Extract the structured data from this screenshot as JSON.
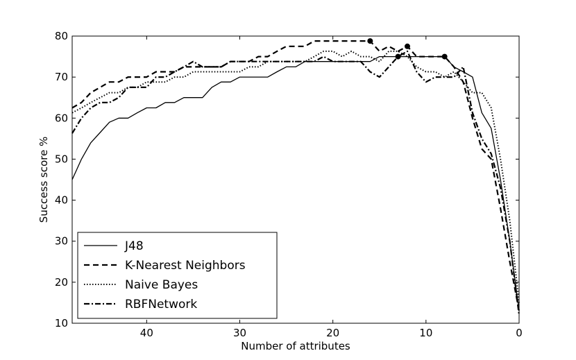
{
  "chart_data": {
    "type": "line",
    "title": "",
    "xlabel": "Number of attributes",
    "ylabel": "Success score %",
    "xlim": [
      48,
      0
    ],
    "ylim": [
      10,
      80
    ],
    "x_reversed": true,
    "xticks": [
      40,
      30,
      20,
      10,
      0
    ],
    "yticks": [
      10,
      20,
      30,
      40,
      50,
      60,
      70,
      80
    ],
    "grid": false,
    "legend_position": "bottom-left",
    "series": [
      {
        "name": "J48",
        "style": "solid",
        "x": [
          48,
          47,
          46,
          45,
          44,
          43,
          42,
          41,
          40,
          39,
          38,
          37,
          36,
          35,
          34,
          33,
          32,
          31,
          30,
          29,
          28,
          27,
          26,
          25,
          24,
          23,
          22,
          21,
          20,
          19,
          18,
          17,
          16,
          15,
          14,
          13,
          12,
          11,
          10,
          9,
          8,
          7,
          6,
          5,
          4,
          3,
          2,
          1,
          0
        ],
        "y": [
          45,
          50,
          54,
          56.5,
          59,
          60,
          60,
          61.3,
          62.5,
          62.5,
          63.8,
          63.8,
          65,
          65,
          65,
          67.5,
          68.8,
          68.8,
          70,
          70,
          70,
          70,
          71.3,
          72.5,
          72.5,
          73.8,
          73.8,
          73.8,
          73.8,
          73.8,
          73.8,
          73.8,
          73.8,
          75,
          75,
          75,
          75,
          75,
          75,
          75,
          75,
          72.5,
          71.3,
          70,
          61.3,
          57.5,
          45,
          30,
          13
        ],
        "marker_points": [
          {
            "x": 8,
            "y": 75
          }
        ]
      },
      {
        "name": "K-Nearest Neighbors",
        "style": "dashed",
        "x": [
          48,
          47,
          46,
          45,
          44,
          43,
          42,
          41,
          40,
          39,
          38,
          37,
          36,
          35,
          34,
          33,
          32,
          31,
          30,
          29,
          28,
          27,
          26,
          25,
          24,
          23,
          22,
          21,
          20,
          19,
          18,
          17,
          16,
          15,
          14,
          13,
          12,
          11,
          10,
          9,
          8,
          7,
          6,
          5,
          4,
          3,
          2,
          1,
          0
        ],
        "y": [
          62.5,
          63.8,
          66.2,
          67.5,
          68.8,
          68.8,
          70,
          70,
          70,
          71.3,
          71.3,
          71.3,
          72.5,
          72.5,
          72.5,
          72.5,
          72.5,
          73.8,
          73.8,
          73.8,
          75,
          75,
          76.3,
          77.5,
          77.5,
          77.5,
          78.8,
          78.8,
          78.8,
          78.8,
          78.8,
          78.8,
          78.8,
          76.3,
          77.5,
          76.3,
          77.5,
          75,
          75,
          75,
          75,
          72.5,
          68.8,
          60,
          52.5,
          50,
          38,
          25,
          13
        ],
        "marker_points": [
          {
            "x": 16,
            "y": 78.8
          },
          {
            "x": 12,
            "y": 77.5
          }
        ]
      },
      {
        "name": "Naive Bayes",
        "style": "dotted",
        "x": [
          48,
          47,
          46,
          45,
          44,
          43,
          42,
          41,
          40,
          39,
          38,
          37,
          36,
          35,
          34,
          33,
          32,
          31,
          30,
          29,
          28,
          27,
          26,
          25,
          24,
          23,
          22,
          21,
          20,
          19,
          18,
          17,
          16,
          15,
          14,
          13,
          12,
          11,
          10,
          9,
          8,
          7,
          6,
          5,
          4,
          3,
          2,
          1,
          0
        ],
        "y": [
          61.3,
          62.5,
          63.8,
          65,
          66.2,
          66.2,
          67.5,
          67.5,
          68.8,
          68.8,
          68.8,
          70,
          70,
          71.3,
          71.3,
          71.3,
          71.3,
          71.3,
          71.3,
          72.5,
          72.5,
          73.8,
          73.8,
          73.8,
          73.8,
          73.8,
          75,
          76.3,
          76.3,
          75,
          76.3,
          75,
          75,
          73.8,
          76.3,
          76.3,
          75,
          72.5,
          71.3,
          71.3,
          70,
          71.3,
          68.8,
          66.2,
          66.2,
          62.5,
          50,
          35,
          15
        ],
        "marker_points": []
      },
      {
        "name": "RBFNetwork",
        "style": "dashdot",
        "x": [
          48,
          47,
          46,
          45,
          44,
          43,
          42,
          41,
          40,
          39,
          38,
          37,
          36,
          35,
          34,
          33,
          32,
          31,
          30,
          29,
          28,
          27,
          26,
          25,
          24,
          23,
          22,
          21,
          20,
          19,
          18,
          17,
          16,
          15,
          14,
          13,
          12,
          11,
          10,
          9,
          8,
          7,
          6,
          5,
          4,
          3,
          2,
          1,
          0
        ],
        "y": [
          56.3,
          60,
          62.5,
          63.8,
          63.8,
          65,
          67.5,
          67.5,
          67.5,
          70,
          70,
          71.3,
          72.5,
          73.8,
          72.5,
          72.5,
          72.5,
          73.8,
          73.8,
          73.8,
          73.8,
          73.8,
          73.8,
          73.8,
          73.8,
          73.8,
          73.8,
          75,
          73.8,
          73.8,
          73.8,
          73.8,
          71.3,
          70,
          72.5,
          75,
          76.3,
          71.3,
          68.8,
          70,
          70,
          70,
          72.5,
          61.3,
          55,
          51.3,
          43,
          30,
          12
        ],
        "marker_points": [
          {
            "x": 13,
            "y": 75
          }
        ]
      }
    ]
  }
}
